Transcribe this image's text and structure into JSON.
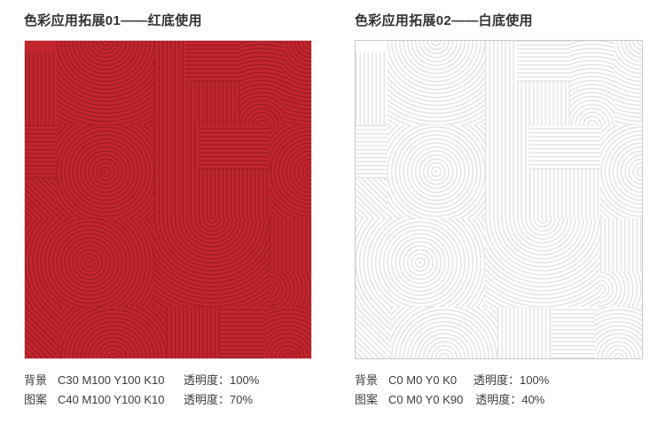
{
  "panels": [
    {
      "title": "色彩应用拓展01——红底使用",
      "swatch": {
        "pattern_name": "geometric-arc-stripe-pattern",
        "background_hex": "#c2262e",
        "pattern_hex": "#a11d25",
        "border_hex": "#e8d6d6"
      },
      "specs": [
        {
          "label": "背景",
          "cmyk": "C30 M100 Y100 K10",
          "opacity_label": "透明度：",
          "opacity_value": "100%"
        },
        {
          "label": "图案",
          "cmyk": "C40 M100 Y100 K10",
          "opacity_label": "透明度：",
          "opacity_value": "70%"
        }
      ]
    },
    {
      "title": "色彩应用拓展02——白底使用",
      "swatch": {
        "pattern_name": "geometric-arc-stripe-pattern",
        "background_hex": "#ffffff",
        "pattern_hex": "#e4e4e6",
        "border_hex": "#c9c9cb"
      },
      "specs": [
        {
          "label": "背景",
          "cmyk": "C0 M0 Y0 K0",
          "opacity_label": "透明度：",
          "opacity_value": "100%"
        },
        {
          "label": "图案",
          "cmyk": "C0 M0 Y0 K90",
          "opacity_label": "透明度：",
          "opacity_value": "40%"
        }
      ]
    }
  ]
}
